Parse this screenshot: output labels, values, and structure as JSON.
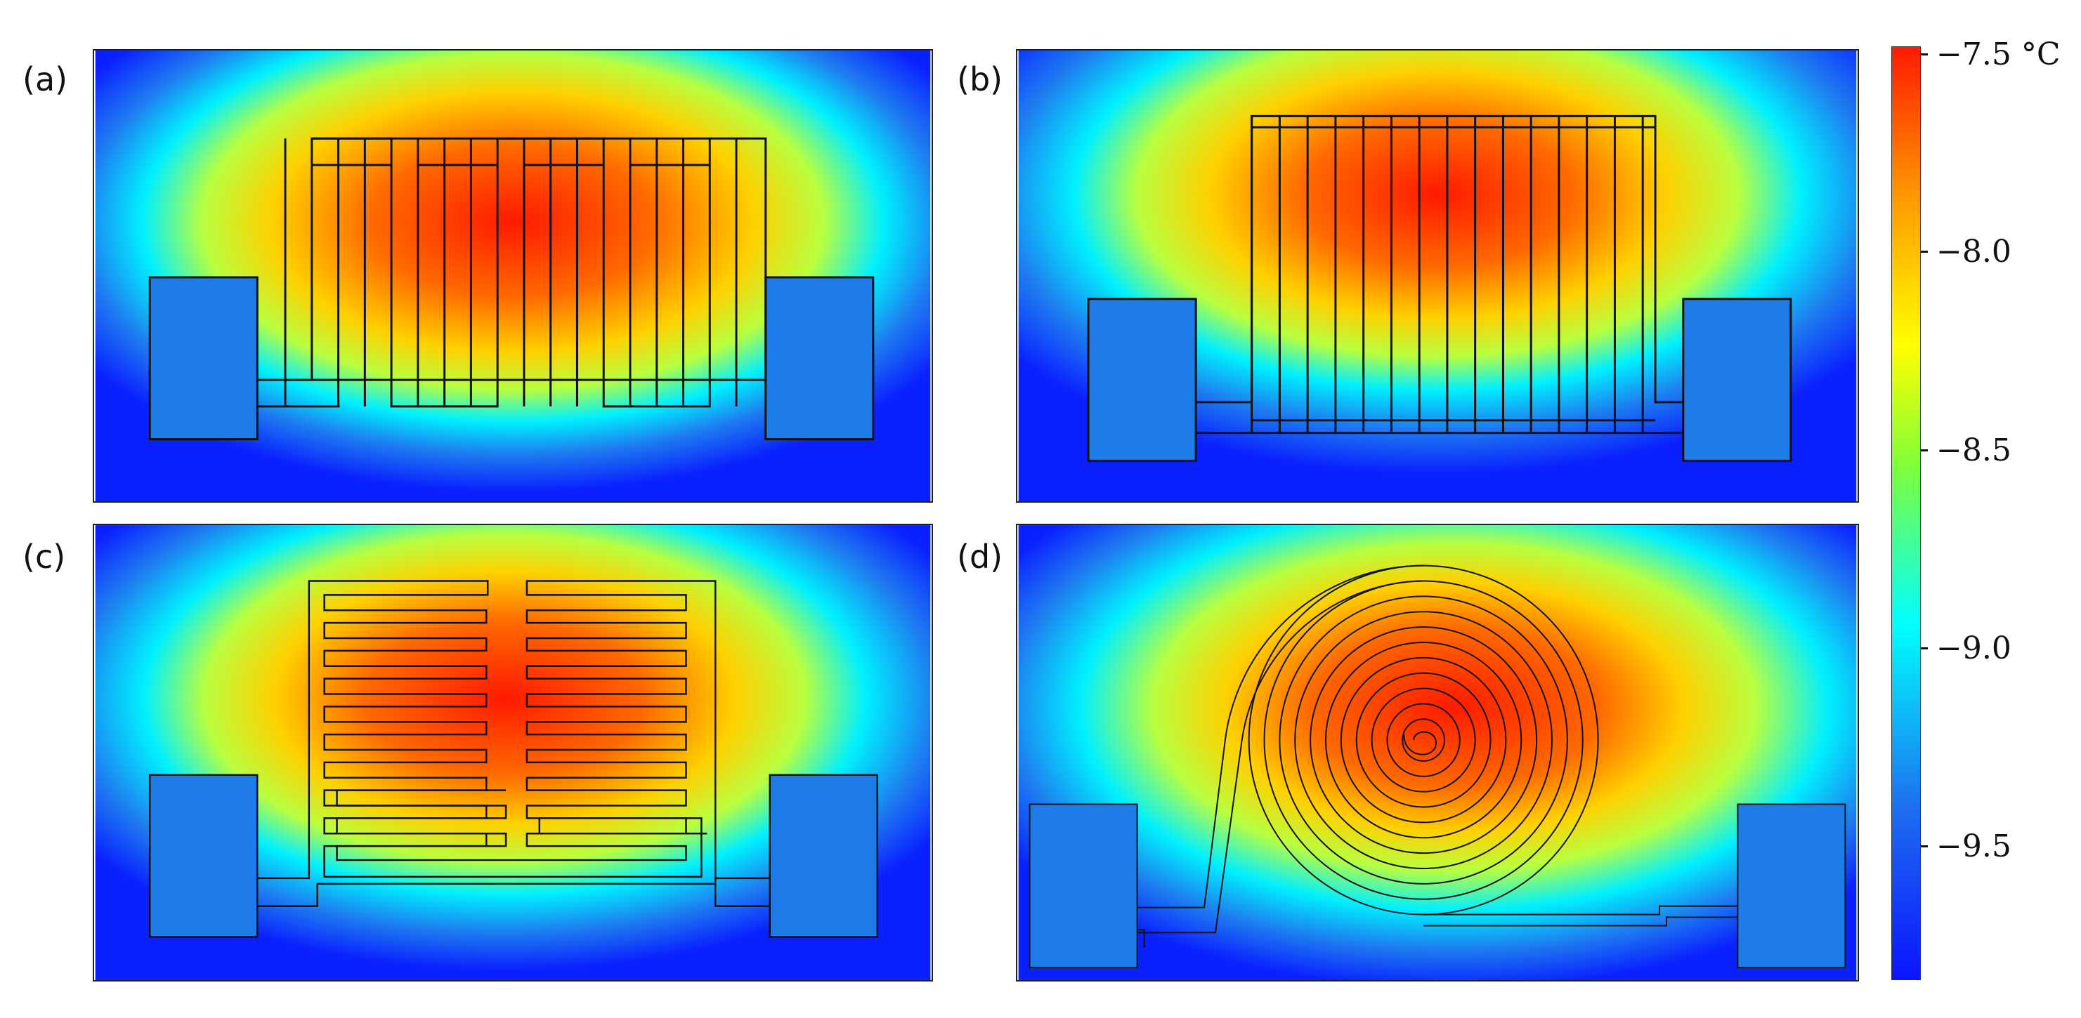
{
  "panels": [
    {
      "label": "(a)"
    },
    {
      "label": "(b)"
    },
    {
      "label": "(c)"
    },
    {
      "label": "(d)"
    }
  ],
  "colorbar": {
    "ticks": [
      "−7.5 °C",
      "−8.0",
      "−8.5",
      "−9.0",
      "−9.5"
    ],
    "min": -9.85,
    "max": -7.5,
    "colors": [
      "#0a14ff",
      "#1e6cf0",
      "#00ffff",
      "#7fff3a",
      "#ffff00",
      "#ff9900",
      "#ff1a00"
    ]
  }
}
